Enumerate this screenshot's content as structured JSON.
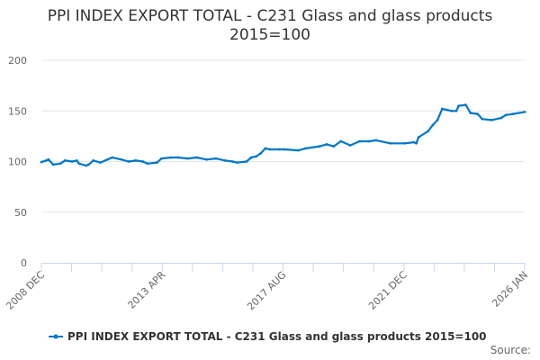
{
  "chart_data": {
    "type": "line",
    "title": "PPI INDEX EXPORT TOTAL - C231 Glass and glass products 2015=100",
    "title_line1": "PPI INDEX EXPORT TOTAL - C231 Glass and glass products",
    "title_line2": "2015=100",
    "xlabel": "",
    "ylabel": "",
    "ylim": [
      0,
      200
    ],
    "y_ticks": [
      "0",
      "50",
      "100",
      "150",
      "200"
    ],
    "x_range": [
      "2008-12",
      "2026-01"
    ],
    "x_tick_labels": [
      "2008 DEC",
      "2013 APR",
      "2017 AUG",
      "2021 DEC",
      "2026 JAN"
    ],
    "grid": "horizontal",
    "legend_placement": "bottom",
    "series": [
      {
        "name": "PPI INDEX EXPORT TOTAL - C231 Glass and glass products 2015=100",
        "color": "#0077c8",
        "points": [
          [
            "2008-12",
            99.5
          ],
          [
            "2009-02",
            101
          ],
          [
            "2009-03",
            102
          ],
          [
            "2009-05",
            97
          ],
          [
            "2009-08",
            98
          ],
          [
            "2009-10",
            101
          ],
          [
            "2010-01",
            100
          ],
          [
            "2010-03",
            101
          ],
          [
            "2010-04",
            98
          ],
          [
            "2010-07",
            96
          ],
          [
            "2010-08",
            97
          ],
          [
            "2010-10",
            101
          ],
          [
            "2011-01",
            99
          ],
          [
            "2011-04",
            102
          ],
          [
            "2011-06",
            104
          ],
          [
            "2011-10",
            102
          ],
          [
            "2012-01",
            100
          ],
          [
            "2012-04",
            101
          ],
          [
            "2012-07",
            100
          ],
          [
            "2012-09",
            98
          ],
          [
            "2013-01",
            99
          ],
          [
            "2013-03",
            103
          ],
          [
            "2013-07",
            104
          ],
          [
            "2013-10",
            104
          ],
          [
            "2014-02",
            103
          ],
          [
            "2014-06",
            104
          ],
          [
            "2014-10",
            102
          ],
          [
            "2015-02",
            103
          ],
          [
            "2015-06",
            101
          ],
          [
            "2015-09",
            100
          ],
          [
            "2015-11",
            99
          ],
          [
            "2016-03",
            100
          ],
          [
            "2016-05",
            104
          ],
          [
            "2016-07",
            105
          ],
          [
            "2016-09",
            108
          ],
          [
            "2016-11",
            113
          ],
          [
            "2017-01",
            112
          ],
          [
            "2017-05",
            112
          ],
          [
            "2017-07",
            112
          ],
          [
            "2018-01",
            111
          ],
          [
            "2018-04",
            113
          ],
          [
            "2018-10",
            115
          ],
          [
            "2019-01",
            117
          ],
          [
            "2019-04",
            115
          ],
          [
            "2019-07",
            120
          ],
          [
            "2019-11",
            116
          ],
          [
            "2020-03",
            120
          ],
          [
            "2020-07",
            120
          ],
          [
            "2020-10",
            121
          ],
          [
            "2021-04",
            118
          ],
          [
            "2021-10",
            118
          ],
          [
            "2022-02",
            119
          ],
          [
            "2022-03",
            118
          ],
          [
            "2022-04",
            124
          ],
          [
            "2022-08",
            130
          ],
          [
            "2022-10",
            136
          ],
          [
            "2022-12",
            141
          ],
          [
            "2023-02",
            152
          ],
          [
            "2023-04",
            151
          ],
          [
            "2023-06",
            150
          ],
          [
            "2023-08",
            150
          ],
          [
            "2023-09",
            155
          ],
          [
            "2023-12",
            156
          ],
          [
            "2024-02",
            148
          ],
          [
            "2024-05",
            147
          ],
          [
            "2024-07",
            142
          ],
          [
            "2024-11",
            141
          ],
          [
            "2025-03",
            143
          ],
          [
            "2025-05",
            146
          ],
          [
            "2025-08",
            147
          ],
          [
            "2026-01",
            149
          ]
        ]
      }
    ]
  },
  "source_label": "Source:"
}
